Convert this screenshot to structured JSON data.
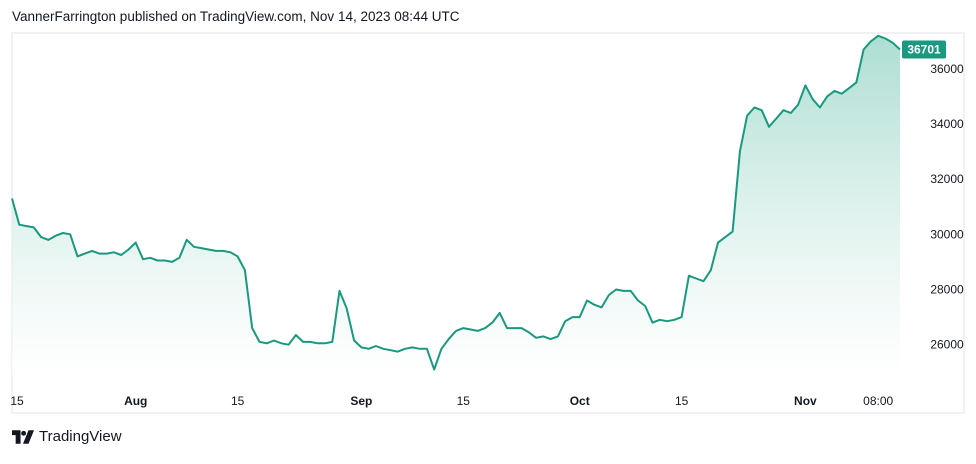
{
  "header": {
    "publish_line": "VannerFarrington published on TradingView.com, Nov 14, 2023 08:44 UTC"
  },
  "footer": {
    "brand": "TradingView",
    "logo_icon": "tradingview-logo-icon"
  },
  "colors": {
    "line": "#1a9880",
    "fill_top": "#a8dccf",
    "fill_bottom": "#ffffff",
    "price_label_bg": "#1a9880",
    "axis_text": "#131722",
    "border": "#e0e3eb"
  },
  "chart_data": {
    "type": "area",
    "title": "",
    "xlabel": "",
    "ylabel": "",
    "ylim": [
      24900,
      37300
    ],
    "y_ticks": [
      26000,
      28000,
      30000,
      32000,
      34000,
      36000
    ],
    "y_tick_labels": [
      "26000",
      "28000",
      "30000",
      "32000",
      "34000",
      "36000"
    ],
    "x_tick_labels": [
      "15",
      "Aug",
      "15",
      "Sep",
      "15",
      "Oct",
      "15",
      "Nov",
      "08:00"
    ],
    "x_tick_dates": [
      "2023-07-15",
      "2023-08-01",
      "2023-08-15",
      "2023-09-01",
      "2023-09-15",
      "2023-10-01",
      "2023-10-15",
      "2023-11-01",
      "2023-11-11"
    ],
    "last_price_label": "36701",
    "last_price": 36701,
    "grid": false,
    "series": [
      {
        "x": [
          "2023-07-15",
          "2023-07-16",
          "2023-07-17",
          "2023-07-18",
          "2023-07-19",
          "2023-07-20",
          "2023-07-21",
          "2023-07-22",
          "2023-07-23",
          "2023-07-24",
          "2023-07-25",
          "2023-07-26",
          "2023-07-27",
          "2023-07-28",
          "2023-07-29",
          "2023-07-30",
          "2023-07-31",
          "2023-08-01",
          "2023-08-02",
          "2023-08-03",
          "2023-08-04",
          "2023-08-05",
          "2023-08-06",
          "2023-08-07",
          "2023-08-08",
          "2023-08-09",
          "2023-08-10",
          "2023-08-11",
          "2023-08-12",
          "2023-08-13",
          "2023-08-14",
          "2023-08-15",
          "2023-08-16",
          "2023-08-17",
          "2023-08-18",
          "2023-08-19",
          "2023-08-20",
          "2023-08-21",
          "2023-08-22",
          "2023-08-23",
          "2023-08-24",
          "2023-08-25",
          "2023-08-26",
          "2023-08-27",
          "2023-08-28",
          "2023-08-29",
          "2023-08-30",
          "2023-08-31",
          "2023-09-01",
          "2023-09-02",
          "2023-09-03",
          "2023-09-04",
          "2023-09-05",
          "2023-09-06",
          "2023-09-07",
          "2023-09-08",
          "2023-09-09",
          "2023-09-10",
          "2023-09-11",
          "2023-09-12",
          "2023-09-13",
          "2023-09-14",
          "2023-09-15",
          "2023-09-16",
          "2023-09-17",
          "2023-09-18",
          "2023-09-19",
          "2023-09-20",
          "2023-09-21",
          "2023-09-22",
          "2023-09-23",
          "2023-09-24",
          "2023-09-25",
          "2023-09-26",
          "2023-09-27",
          "2023-09-28",
          "2023-09-29",
          "2023-09-30",
          "2023-10-01",
          "2023-10-02",
          "2023-10-03",
          "2023-10-04",
          "2023-10-05",
          "2023-10-06",
          "2023-10-07",
          "2023-10-08",
          "2023-10-09",
          "2023-10-10",
          "2023-10-11",
          "2023-10-12",
          "2023-10-13",
          "2023-10-14",
          "2023-10-15",
          "2023-10-16",
          "2023-10-17",
          "2023-10-18",
          "2023-10-19",
          "2023-10-20",
          "2023-10-21",
          "2023-10-22",
          "2023-10-23",
          "2023-10-24",
          "2023-10-25",
          "2023-10-26",
          "2023-10-27",
          "2023-10-28",
          "2023-10-29",
          "2023-10-30",
          "2023-10-31",
          "2023-11-01",
          "2023-11-02",
          "2023-11-03",
          "2023-11-04",
          "2023-11-05",
          "2023-11-06",
          "2023-11-07",
          "2023-11-08",
          "2023-11-09",
          "2023-11-10",
          "2023-11-11",
          "2023-11-12",
          "2023-11-13",
          "2023-11-14"
        ],
        "values": [
          31300,
          30350,
          30300,
          30250,
          29900,
          29800,
          29950,
          30050,
          30000,
          29200,
          29300,
          29400,
          29300,
          29300,
          29350,
          29250,
          29450,
          29700,
          29100,
          29150,
          29050,
          29050,
          29000,
          29150,
          29800,
          29550,
          29500,
          29450,
          29400,
          29400,
          29350,
          29200,
          28700,
          26600,
          26100,
          26050,
          26150,
          26050,
          26000,
          26350,
          26100,
          26100,
          26050,
          26050,
          26100,
          27950,
          27300,
          26150,
          25900,
          25850,
          25950,
          25850,
          25800,
          25750,
          25850,
          25900,
          25850,
          25850,
          25100,
          25850,
          26200,
          26500,
          26600,
          26550,
          26500,
          26600,
          26800,
          27150,
          26600,
          26600,
          26600,
          26450,
          26250,
          26300,
          26200,
          26300,
          26850,
          27000,
          27000,
          27600,
          27450,
          27350,
          27800,
          28000,
          27950,
          27950,
          27600,
          27400,
          26800,
          26900,
          26850,
          26900,
          27000,
          28500,
          28400,
          28300,
          28700,
          29700,
          29900,
          30100,
          33000,
          34300,
          34600,
          34500,
          33900,
          34200,
          34500,
          34400,
          34700,
          35400,
          34900,
          34600,
          35000,
          35200,
          35100,
          35300,
          35500,
          36700,
          37000,
          37200,
          37100,
          36950,
          36701
        ]
      }
    ]
  }
}
